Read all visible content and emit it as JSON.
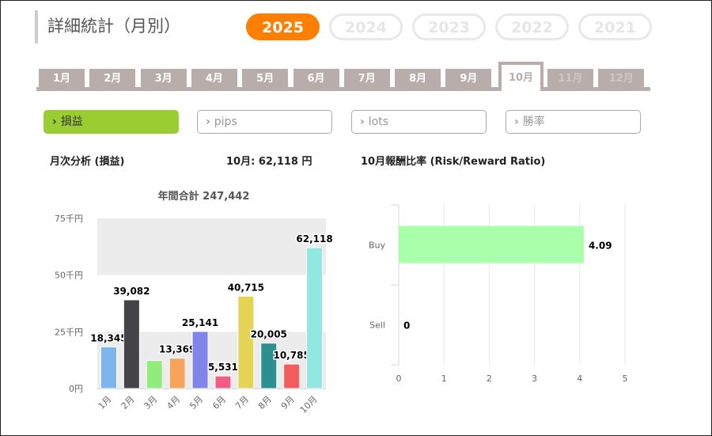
{
  "header": {
    "title": "詳細統計（月別）"
  },
  "years": [
    {
      "label": "2025",
      "active": true
    },
    {
      "label": "2024"
    },
    {
      "label": "2023"
    },
    {
      "label": "2022"
    },
    {
      "label": "2021"
    }
  ],
  "months": [
    {
      "label": "1月"
    },
    {
      "label": "2月"
    },
    {
      "label": "3月"
    },
    {
      "label": "4月"
    },
    {
      "label": "5月"
    },
    {
      "label": "6月"
    },
    {
      "label": "7月"
    },
    {
      "label": "8月"
    },
    {
      "label": "9月"
    },
    {
      "label": "10月",
      "active": true
    },
    {
      "label": "11月",
      "disabled": true
    },
    {
      "label": "12月",
      "disabled": true
    }
  ],
  "metrics": [
    {
      "label": "損益",
      "active": true
    },
    {
      "label": "pips"
    },
    {
      "label": "lots"
    },
    {
      "label": "勝率"
    }
  ],
  "chevron": "›",
  "monthly": {
    "heading": "月次分析 (損益)",
    "current": "10月:  62,118 円"
  },
  "rr": {
    "heading": "10月報酬比率 (Risk/Reward Ratio)"
  },
  "chart_data": [
    {
      "type": "bar",
      "title": "年間合計 247,442",
      "categories": [
        "1月",
        "2月",
        "3月",
        "4月",
        "5月",
        "6月",
        "7月",
        "8月",
        "9月",
        "10月"
      ],
      "values": [
        18345,
        39082,
        12351,
        13369,
        25141,
        5531,
        40715,
        20005,
        10785,
        62118
      ],
      "labels": [
        "18,345",
        "39,082",
        "",
        "13,369",
        "25,141",
        "5,531",
        "40,715",
        "20,005",
        "10,785",
        "62,118"
      ],
      "colors": [
        "#7cb5ec",
        "#434348",
        "#90ed7d",
        "#f7a35c",
        "#8085e9",
        "#f15c80",
        "#e4d354",
        "#2b908f",
        "#f45b5b",
        "#91e8e1"
      ],
      "yticks": [
        {
          "v": 0,
          "label": "0円"
        },
        {
          "v": 25000,
          "label": "25千円"
        },
        {
          "v": 50000,
          "label": "50千円"
        },
        {
          "v": 75000,
          "label": "75千円"
        }
      ],
      "ylim": [
        0,
        75000
      ]
    },
    {
      "type": "bar",
      "orientation": "horizontal",
      "categories": [
        "Buy",
        "Sell"
      ],
      "values": [
        4.09,
        0
      ],
      "labels": [
        "4.09",
        "0"
      ],
      "color": "#aaffaa",
      "xticks": [
        "0",
        "1",
        "2",
        "3",
        "4",
        "5"
      ],
      "xlim": [
        0,
        5
      ]
    }
  ]
}
